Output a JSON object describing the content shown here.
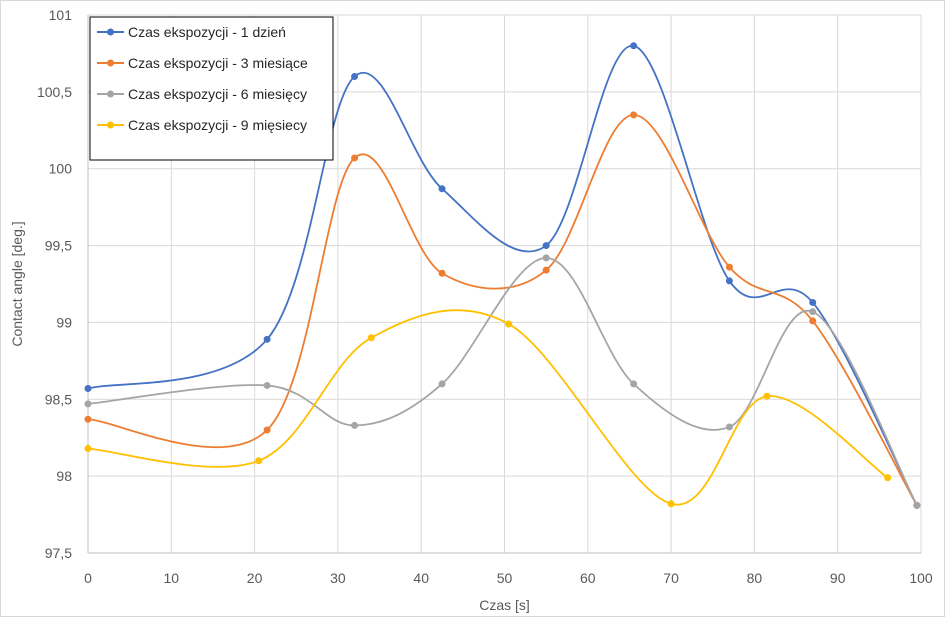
{
  "chart_data": {
    "type": "line",
    "title": "",
    "xlabel": "Czas [s]",
    "ylabel": "Contact angle [deg.]",
    "xlim": [
      0,
      100
    ],
    "ylim": [
      97.5,
      101
    ],
    "x_ticks": [
      0,
      10,
      20,
      30,
      40,
      50,
      60,
      70,
      80,
      90,
      100
    ],
    "y_ticks": [
      97.5,
      98,
      98.5,
      99,
      99.5,
      100,
      100.5,
      101
    ],
    "y_tick_labels": [
      "97,5",
      "98",
      "98,5",
      "99",
      "99,5",
      "100",
      "100,5",
      "101"
    ],
    "grid": true,
    "legend_position": "top-left",
    "smooth": true,
    "series": [
      {
        "name": "Czas ekspozycji - 1 dzień",
        "color": "#4472C4",
        "points": [
          [
            0,
            98.57
          ],
          [
            21.5,
            98.89
          ],
          [
            32,
            100.6
          ],
          [
            42.5,
            99.87
          ],
          [
            55,
            99.5
          ],
          [
            65.5,
            100.8
          ],
          [
            77,
            99.27
          ],
          [
            87,
            99.13
          ],
          [
            99.5,
            97.81
          ]
        ]
      },
      {
        "name": "Czas ekspozycji - 3 miesiące",
        "color": "#ED7D31",
        "points": [
          [
            0,
            98.37
          ],
          [
            21.5,
            98.3
          ],
          [
            32,
            100.07
          ],
          [
            42.5,
            99.32
          ],
          [
            55,
            99.34
          ],
          [
            65.5,
            100.35
          ],
          [
            77,
            99.36
          ],
          [
            87,
            99.01
          ],
          [
            99.5,
            97.81
          ]
        ]
      },
      {
        "name": "Czas ekspozycji - 6 miesięcy",
        "color": "#A5A5A5",
        "points": [
          [
            0,
            98.47
          ],
          [
            21.5,
            98.59
          ],
          [
            32,
            98.33
          ],
          [
            42.5,
            98.6
          ],
          [
            55,
            99.42
          ],
          [
            65.5,
            98.6
          ],
          [
            77,
            98.32
          ],
          [
            87,
            99.07
          ],
          [
            99.5,
            97.81
          ]
        ]
      },
      {
        "name": "Czas ekspozycji - 9 mięsiecy",
        "color": "#FFC000",
        "points": [
          [
            0,
            98.18
          ],
          [
            20.5,
            98.1
          ],
          [
            34,
            98.9
          ],
          [
            50.5,
            98.99
          ],
          [
            70,
            97.82
          ],
          [
            81.5,
            98.52
          ],
          [
            96,
            97.99
          ]
        ]
      }
    ]
  }
}
